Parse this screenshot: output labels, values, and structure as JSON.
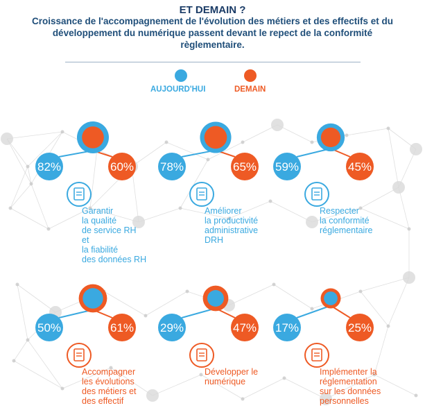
{
  "header": {
    "title": "ET DEMAIN ?",
    "subtitle_lines": [
      "Croissance de l'accompagnement de l'évolution des métiers et des effectifs et du",
      "développement du numérique passent devant le repect de la conformité",
      "règlementaire."
    ]
  },
  "legend": [
    {
      "label": "AUJOURD'HUI",
      "color": "#3aa9e0"
    },
    {
      "label": "DEMAIN",
      "color": "#ee5a24"
    }
  ],
  "colors": {
    "aujourdhui": "#3aa9e0",
    "demain": "#ee5a24",
    "label_blue": "#3aa9e0",
    "label_orange": "#ee5a24",
    "network": "#c9c9c9"
  },
  "chart_data": {
    "type": "bubble",
    "series": [
      {
        "name": "AUJOURD'HUI",
        "values": [
          82,
          78,
          59,
          50,
          29,
          17
        ]
      },
      {
        "name": "DEMAIN",
        "values": [
          60,
          65,
          45,
          61,
          47,
          25
        ]
      }
    ],
    "items": [
      {
        "label_lines": [
          "Garantir",
          "la qualité",
          "de service RH",
          "et",
          "la fiabilité",
          "des données RH"
        ],
        "aujourdhui": 82,
        "demain": 60,
        "today_label": "82%",
        "tomorrow_label": "60%",
        "icon": "certificate-icon"
      },
      {
        "label_lines": [
          "Améliorer",
          "la productivité",
          "administrative",
          "DRH"
        ],
        "aujourdhui": 78,
        "demain": 65,
        "today_label": "78%",
        "tomorrow_label": "65%",
        "icon": "productivity-chart-icon"
      },
      {
        "label_lines": [
          "Respecter",
          "la conformité",
          "réglementaire"
        ],
        "aujourdhui": 59,
        "demain": 45,
        "today_label": "59%",
        "tomorrow_label": "45%",
        "icon": "justice-scales-icon"
      },
      {
        "label_lines": [
          "Accompagner",
          "les évolutions",
          "des métiers et",
          "des effectif"
        ],
        "aujourdhui": 50,
        "demain": 61,
        "today_label": "50%",
        "tomorrow_label": "61%",
        "icon": "document-person-icon"
      },
      {
        "label_lines": [
          "Développer le",
          "numérique"
        ],
        "aujourdhui": 29,
        "demain": 47,
        "today_label": "29%",
        "tomorrow_label": "47%",
        "icon": "growth-screen-icon"
      },
      {
        "label_lines": [
          "Implémenter la",
          "réglementation",
          "sur les données",
          "personnelles"
        ],
        "aujourdhui": 17,
        "demain": 25,
        "today_label": "17%",
        "tomorrow_label": "25%",
        "icon": "legal-document-icon"
      }
    ]
  }
}
